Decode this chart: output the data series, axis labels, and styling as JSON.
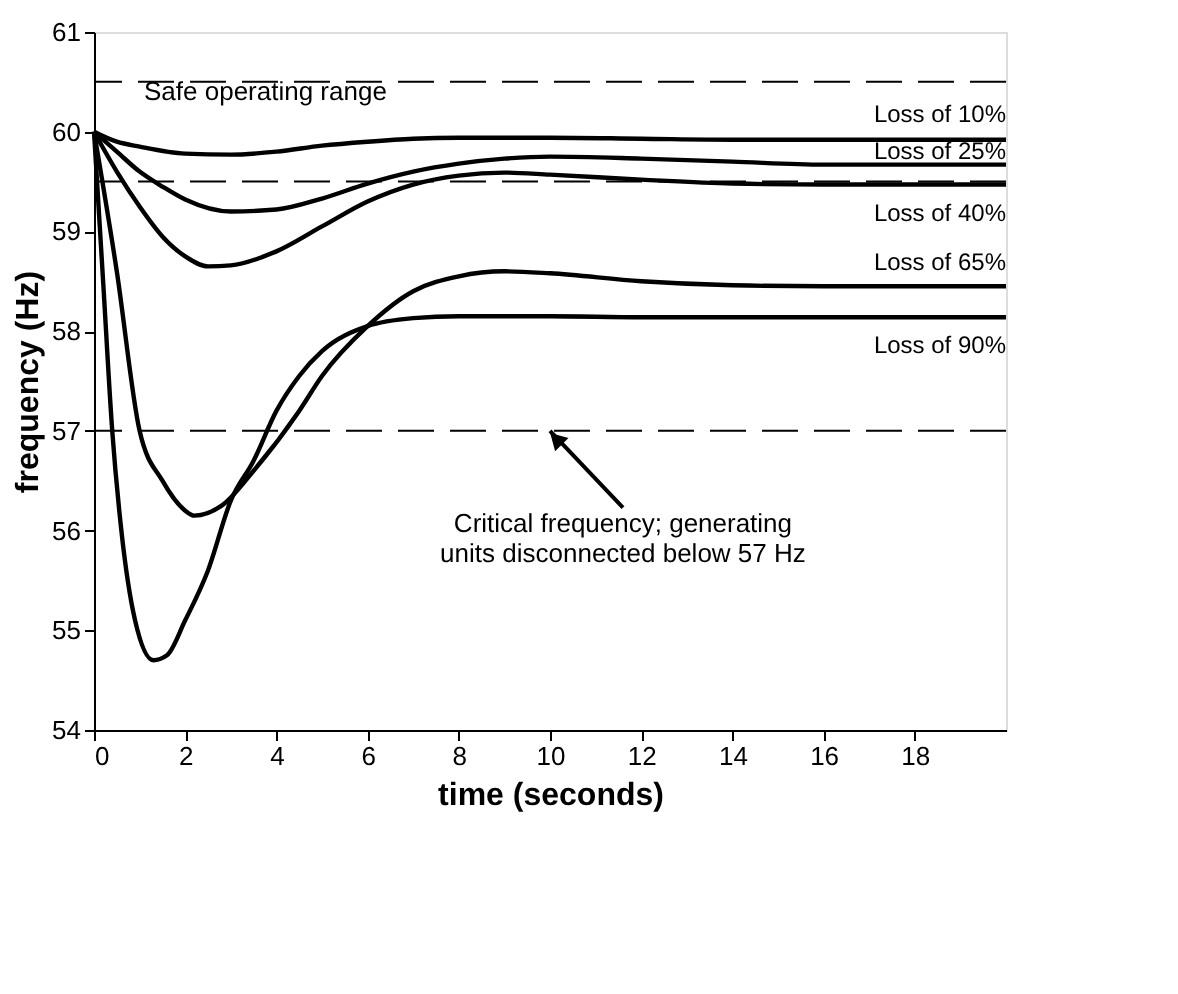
{
  "chart_data": {
    "type": "line",
    "xlabel": "time (seconds)",
    "ylabel": "frequency (Hz)",
    "xlim": [
      0,
      20
    ],
    "xticks": [
      0,
      2,
      4,
      6,
      8,
      10,
      12,
      14,
      16,
      18
    ],
    "ylim": [
      54,
      61
    ],
    "yticks": [
      54,
      55,
      56,
      57,
      58,
      59,
      60,
      61
    ],
    "grid": false,
    "legend": false,
    "line_style": "solid",
    "marker": "none",
    "series": [
      {
        "name": "Loss of 10%",
        "color": "#000000",
        "x": [
          0,
          0.5,
          1,
          2,
          3,
          4,
          5,
          6,
          7,
          8,
          10,
          12,
          14,
          20
        ],
        "values": [
          60,
          59.9,
          59.85,
          59.78,
          59.77,
          59.8,
          59.86,
          59.9,
          59.93,
          59.94,
          59.94,
          59.93,
          59.92,
          59.92
        ]
      },
      {
        "name": "Loss of 25%",
        "color": "#000000",
        "x": [
          0,
          0.5,
          1,
          1.5,
          2,
          3,
          4,
          5,
          6,
          7,
          8,
          9,
          10,
          12,
          14,
          16,
          20
        ],
        "values": [
          60,
          59.8,
          59.6,
          59.45,
          59.32,
          59.2,
          59.22,
          59.33,
          59.48,
          59.6,
          59.68,
          59.73,
          59.75,
          59.73,
          59.7,
          59.67,
          59.67
        ]
      },
      {
        "name": "Loss of 40%",
        "color": "#000000",
        "x": [
          0,
          0.5,
          1,
          1.5,
          2,
          2.5,
          3,
          4,
          5,
          6,
          7,
          8,
          9,
          10,
          12,
          14,
          16,
          20
        ],
        "values": [
          60,
          59.6,
          59.25,
          58.95,
          58.75,
          58.65,
          58.66,
          58.8,
          59.05,
          59.3,
          59.47,
          59.56,
          59.59,
          59.57,
          59.52,
          59.48,
          59.47,
          59.47
        ]
      },
      {
        "name": "Loss of 65%",
        "color": "#000000",
        "x": [
          0,
          0.5,
          1,
          1.5,
          2,
          2.2,
          2.8,
          3.5,
          4.5,
          5,
          6,
          7,
          8,
          9,
          10,
          12,
          14,
          16,
          20
        ],
        "values": [
          60,
          58.6,
          57.0,
          56.5,
          56.2,
          56.15,
          56.25,
          56.6,
          57.2,
          57.55,
          58.05,
          58.4,
          58.55,
          58.6,
          58.58,
          58.5,
          58.46,
          58.45,
          58.45
        ]
      },
      {
        "name": "Loss of 90%",
        "color": "#000000",
        "x": [
          0,
          0.2,
          0.4,
          0.6,
          0.9,
          1.3,
          1.6,
          2,
          2.5,
          3,
          3.5,
          4,
          4.5,
          5,
          6,
          7,
          8,
          10,
          12,
          20
        ],
        "values": [
          60,
          58.5,
          57.0,
          56.0,
          55.1,
          54.7,
          54.75,
          55.1,
          55.6,
          56.3,
          56.7,
          57.2,
          57.55,
          57.8,
          58.05,
          58.13,
          58.15,
          58.15,
          58.14,
          58.14
        ]
      }
    ],
    "ref_lines": [
      {
        "axis": "y",
        "value": 60.5,
        "color": "#000000",
        "line_style": "dashed"
      },
      {
        "axis": "y",
        "value": 59.5,
        "color": "#000000",
        "line_style": "dashed"
      },
      {
        "axis": "y",
        "value": 57,
        "color": "#000000",
        "line_style": "dashed"
      }
    ],
    "annotations": [
      "Safe operating range",
      {
        "text": "Critical frequency; generating\nunits disconnected below 57 Hz",
        "x": 10,
        "y": 57
      }
    ]
  }
}
